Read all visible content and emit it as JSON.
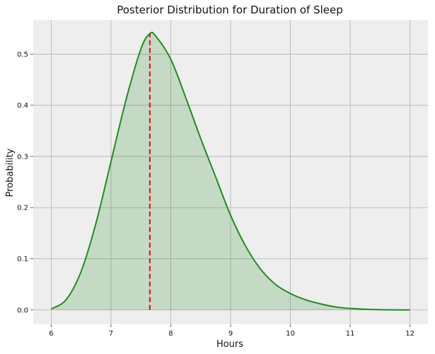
{
  "chart_data": {
    "type": "area",
    "title": "Posterior Distribution for Duration of Sleep",
    "xlabel": "Hours",
    "ylabel": "Probability",
    "xlim": [
      5.7,
      12.3
    ],
    "ylim": [
      -0.028,
      0.567
    ],
    "xticks": [
      "6",
      "7",
      "8",
      "9",
      "10",
      "11",
      "12"
    ],
    "yticks": [
      "0.0",
      "0.1",
      "0.2",
      "0.3",
      "0.4",
      "0.5"
    ],
    "grid": true,
    "x": [
      6.0,
      6.25,
      6.5,
      6.75,
      7.0,
      7.25,
      7.5,
      7.65,
      7.75,
      8.0,
      8.25,
      8.5,
      8.75,
      9.0,
      9.25,
      9.5,
      9.75,
      10.0,
      10.25,
      10.5,
      10.75,
      11.0,
      11.5,
      12.0
    ],
    "y": [
      0.002,
      0.02,
      0.075,
      0.17,
      0.29,
      0.41,
      0.51,
      0.54,
      0.535,
      0.49,
      0.415,
      0.335,
      0.26,
      0.185,
      0.125,
      0.08,
      0.05,
      0.032,
      0.02,
      0.012,
      0.006,
      0.003,
      0.0005,
      0.0
    ],
    "line_color": "#228B22",
    "fill_color": "#228B22",
    "marker": {
      "x": 7.65,
      "y": 0.54,
      "color": "#ff0000",
      "style": "dashed"
    },
    "background": "#eeeeee",
    "grid_color": "#b0b0b0"
  }
}
